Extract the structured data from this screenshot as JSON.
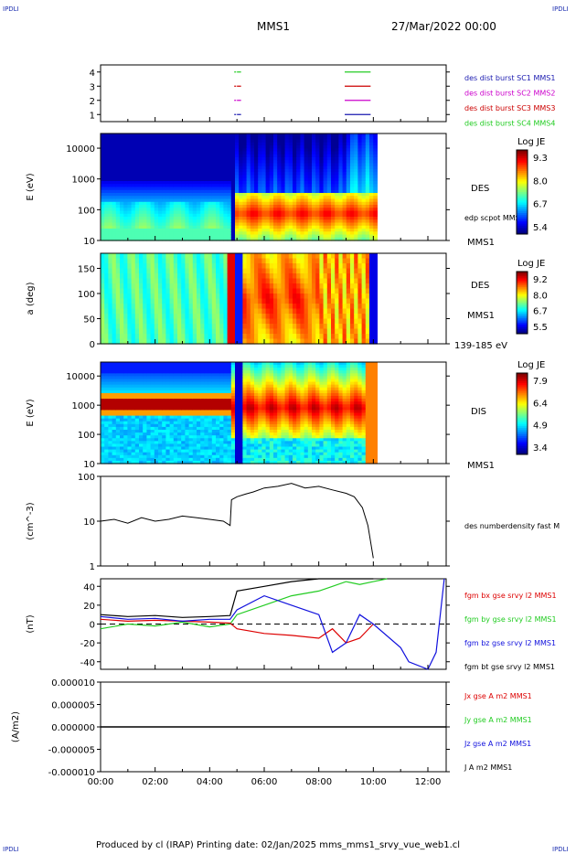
{
  "header": {
    "mission": "MMS1",
    "datetime": "27/Mar/2022 00:00",
    "corner_labels": [
      "IPDLI",
      "IPDLI",
      "IPDLI",
      "IPDLI"
    ]
  },
  "footer": {
    "text": "Produced by cl (IRAP)   Printing date: 02/Jan/2025   mms_mms1_srvy_vue_web1.cl"
  },
  "chart_data": [
    {
      "type": "line",
      "panel": "burst-intervals",
      "y_ticks": [
        "1",
        "2",
        "3",
        "4"
      ],
      "ylim": [
        0.5,
        4.5
      ],
      "series": [
        {
          "name": "des dist burst SC1 MMS1",
          "color": "#1a1ab0",
          "y": 1,
          "intervals": [
            [
              4.9,
              4.97
            ],
            [
              5.0,
              5.15
            ],
            [
              8.95,
              9.9
            ]
          ]
        },
        {
          "name": "des dist burst SC2 MMS2",
          "color": "#cc00cc",
          "y": 2,
          "intervals": [
            [
              4.9,
              4.97
            ],
            [
              5.0,
              5.15
            ],
            [
              8.95,
              9.9
            ]
          ]
        },
        {
          "name": "des dist burst SC3 MMS3",
          "color": "#cc0000",
          "y": 3,
          "intervals": [
            [
              4.9,
              4.97
            ],
            [
              5.0,
              5.15
            ],
            [
              8.95,
              9.9
            ]
          ]
        },
        {
          "name": "des dist burst SC4 MMS4",
          "color": "#22cc22",
          "y": 4,
          "intervals": [
            [
              4.9,
              4.97
            ],
            [
              5.0,
              5.15
            ],
            [
              8.95,
              9.9
            ]
          ]
        }
      ]
    },
    {
      "type": "heatmap",
      "panel": "des-energy",
      "ylabel": "E (eV)",
      "yscale": "log",
      "ylim": [
        10,
        30000
      ],
      "y_ticks": [
        "10",
        "100",
        "1000",
        "10000"
      ],
      "right_labels": [
        "DES",
        "edp scpot MMS1",
        "MMS1"
      ],
      "colorbar": {
        "title": "Log JE",
        "ticks": [
          "9.3",
          "8.0",
          "6.7",
          "5.4"
        ],
        "range": [
          5.4,
          9.3
        ]
      }
    },
    {
      "type": "heatmap",
      "panel": "des-pitch",
      "ylabel": "a (deg)",
      "ylim": [
        0,
        180
      ],
      "y_ticks": [
        "0",
        "50",
        "100",
        "150"
      ],
      "right_labels": [
        "DES",
        "MMS1",
        "139-185 eV"
      ],
      "colorbar": {
        "title": "Log JE",
        "ticks": [
          "9.2",
          "8.0",
          "6.7",
          "5.5"
        ],
        "range": [
          5.5,
          9.2
        ]
      }
    },
    {
      "type": "heatmap",
      "panel": "dis-energy",
      "ylabel": "E (eV)",
      "yscale": "log",
      "ylim": [
        10,
        30000
      ],
      "y_ticks": [
        "10",
        "100",
        "1000",
        "10000"
      ],
      "right_labels": [
        "DIS",
        "MMS1"
      ],
      "colorbar": {
        "title": "Log JE",
        "ticks": [
          "7.9",
          "6.4",
          "4.9",
          "3.4"
        ],
        "range": [
          3.4,
          7.9
        ]
      }
    },
    {
      "type": "line",
      "panel": "density",
      "ylabel": "(cm^-3)",
      "yscale": "log",
      "ylim": [
        1,
        100
      ],
      "y_ticks": [
        "1",
        "10",
        "100"
      ],
      "series": [
        {
          "name": "des numberdensity fast M",
          "color": "#000000",
          "x": [
            0.0,
            0.5,
            1.0,
            1.5,
            2.0,
            2.5,
            3.0,
            3.5,
            4.0,
            4.5,
            4.75,
            4.8,
            5.0,
            5.3,
            5.6,
            6.0,
            6.5,
            7.0,
            7.5,
            8.0,
            8.5,
            9.0,
            9.3,
            9.6,
            9.8,
            10.0
          ],
          "y": [
            10,
            11,
            9,
            12,
            10,
            11,
            13,
            12,
            11,
            10,
            8,
            30,
            35,
            40,
            45,
            55,
            60,
            70,
            55,
            60,
            50,
            42,
            35,
            20,
            8,
            1.5
          ]
        }
      ]
    },
    {
      "type": "line",
      "panel": "magnetic-field",
      "ylabel": "(nT)",
      "ylim": [
        -48,
        48
      ],
      "y_ticks": [
        "-40",
        "-20",
        "0",
        "20",
        "40"
      ],
      "series": [
        {
          "name": "fgm bx gse srvy l2 MMS1",
          "color": "#dd0000",
          "x": [
            0,
            1,
            2,
            3,
            4,
            4.75,
            5,
            6,
            7,
            8,
            8.5,
            9,
            9.5,
            10
          ],
          "y": [
            5,
            3,
            4,
            3,
            2,
            1,
            -5,
            -10,
            -12,
            -15,
            -5,
            -20,
            -15,
            0
          ]
        },
        {
          "name": "fgm by gse srvy l2 MMS1",
          "color": "#22cc22",
          "x": [
            0,
            1,
            2,
            3,
            4,
            4.75,
            5,
            6,
            7,
            8,
            8.5,
            9,
            9.5,
            10,
            10.5
          ],
          "y": [
            -5,
            0,
            -2,
            2,
            -3,
            0,
            10,
            20,
            30,
            35,
            40,
            45,
            42,
            45,
            48
          ]
        },
        {
          "name": "fgm bz gse srvy l2 MMS1",
          "color": "#1010dd",
          "x": [
            0,
            1,
            2,
            3,
            4,
            4.75,
            5,
            6,
            7,
            8,
            8.5,
            9,
            9.5,
            10,
            11,
            11.3,
            12,
            12.3,
            12.6
          ],
          "y": [
            8,
            5,
            6,
            3,
            5,
            5,
            15,
            30,
            20,
            10,
            -30,
            -20,
            10,
            0,
            -25,
            -40,
            -48,
            -30,
            48
          ]
        },
        {
          "name": "fgm bt gse srvy l2 MMS1",
          "color": "#000000",
          "x": [
            0,
            1,
            2,
            3,
            4,
            4.75,
            5,
            6,
            7,
            8,
            8.5,
            9,
            9.5,
            10
          ],
          "y": [
            10,
            8,
            9,
            7,
            8,
            9,
            35,
            40,
            45,
            48,
            48,
            48,
            48,
            48
          ]
        }
      ]
    },
    {
      "type": "line",
      "panel": "current-density",
      "ylabel": "(A/m2)",
      "ylim": [
        -1e-05,
        1e-05
      ],
      "y_ticks": [
        "-0.000010",
        "-0.000005",
        "0.000000",
        "0.000005",
        "0.000010"
      ],
      "xlim": [
        0,
        12.67
      ],
      "x_ticks": [
        "00:00",
        "02:00",
        "04:00",
        "06:00",
        "08:00",
        "10:00",
        "12:00"
      ],
      "series": [
        {
          "name": "Jx gse A m2 MMS1",
          "color": "#dd0000"
        },
        {
          "name": "Jy gse A m2 MMS1",
          "color": "#22cc22"
        },
        {
          "name": "Jz gse A m2 MMS1",
          "color": "#1010dd"
        },
        {
          "name": "J A m2 MMS1",
          "color": "#000000"
        }
      ]
    }
  ]
}
